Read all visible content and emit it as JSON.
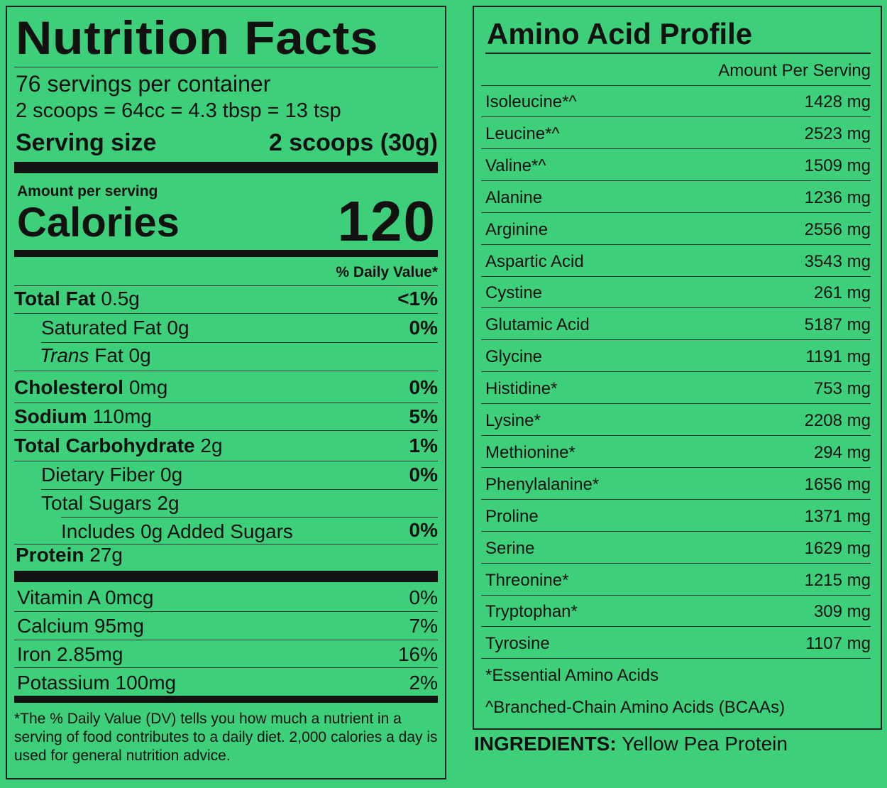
{
  "nutrition": {
    "title": "Nutrition Facts",
    "servings_per_container": "76 servings per container",
    "scoop_equivalents": "2 scoops = 64cc = 4.3 tbsp = 13 tsp",
    "serving_size_label": "Serving size",
    "serving_size_value": "2 scoops (30g)",
    "amount_per_serving": "Amount per serving",
    "calories_label": "Calories",
    "calories_value": "120",
    "daily_value_header": "% Daily Value*",
    "rows": [
      {
        "name": "Total Fat",
        "amount": "0.5g",
        "pct": "<1%"
      },
      {
        "name": "Saturated Fat 0g",
        "pct": "0%"
      },
      {
        "name_italic": "Trans",
        "name_rest": " Fat 0g"
      },
      {
        "name": "Cholesterol",
        "amount": "0mg",
        "pct": "0%"
      },
      {
        "name": "Sodium",
        "amount": "110mg",
        "pct": "5%"
      },
      {
        "name": "Total Carbohydrate",
        "amount": "2g",
        "pct": "1%"
      },
      {
        "name": "Dietary Fiber 0g",
        "pct": "0%"
      },
      {
        "name": "Total Sugars 2g"
      },
      {
        "name": "Includes 0g Added Sugars",
        "pct": "0%"
      },
      {
        "name": "Protein",
        "amount": "27g"
      }
    ],
    "vitamins": [
      {
        "name": "Vitamin A 0mcg",
        "pct": "0%"
      },
      {
        "name": "Calcium 95mg",
        "pct": "7%"
      },
      {
        "name": "Iron 2.85mg",
        "pct": "16%"
      },
      {
        "name": "Potassium 100mg",
        "pct": "2%"
      }
    ],
    "footnote": "*The % Daily Value (DV) tells you how much a nutrient in a serving of food contributes to a daily diet. 2,000 calories a day is used for general nutrition advice."
  },
  "amino": {
    "title": "Amino Acid Profile",
    "amount_header": "Amount Per Serving",
    "rows": [
      {
        "name": "Isoleucine*^",
        "value": "1428 mg"
      },
      {
        "name": "Leucine*^",
        "value": "2523 mg"
      },
      {
        "name": "Valine*^",
        "value": "1509 mg"
      },
      {
        "name": "Alanine",
        "value": "1236 mg"
      },
      {
        "name": "Arginine",
        "value": "2556 mg"
      },
      {
        "name": "Aspartic Acid",
        "value": "3543 mg"
      },
      {
        "name": "Cystine",
        "value": "261 mg"
      },
      {
        "name": "Glutamic Acid",
        "value": "5187 mg"
      },
      {
        "name": "Glycine",
        "value": "1191 mg"
      },
      {
        "name": "Histidine*",
        "value": "753 mg"
      },
      {
        "name": "Lysine*",
        "value": "2208 mg"
      },
      {
        "name": "Methionine*",
        "value": "294 mg"
      },
      {
        "name": "Phenylalanine*",
        "value": "1656 mg"
      },
      {
        "name": "Proline",
        "value": "1371 mg"
      },
      {
        "name": "Serine",
        "value": "1629 mg"
      },
      {
        "name": "Threonine*",
        "value": "1215 mg"
      },
      {
        "name": "Tryptophan*",
        "value": "309 mg"
      },
      {
        "name": "Tyrosine",
        "value": "1107 mg"
      }
    ],
    "note_essential": "*Essential Amino Acids",
    "note_bcaa": "^Branched-Chain Amino Acids (BCAAs)"
  },
  "ingredients": {
    "label": "INGREDIENTS:",
    "value": "Yellow Pea Protein"
  }
}
